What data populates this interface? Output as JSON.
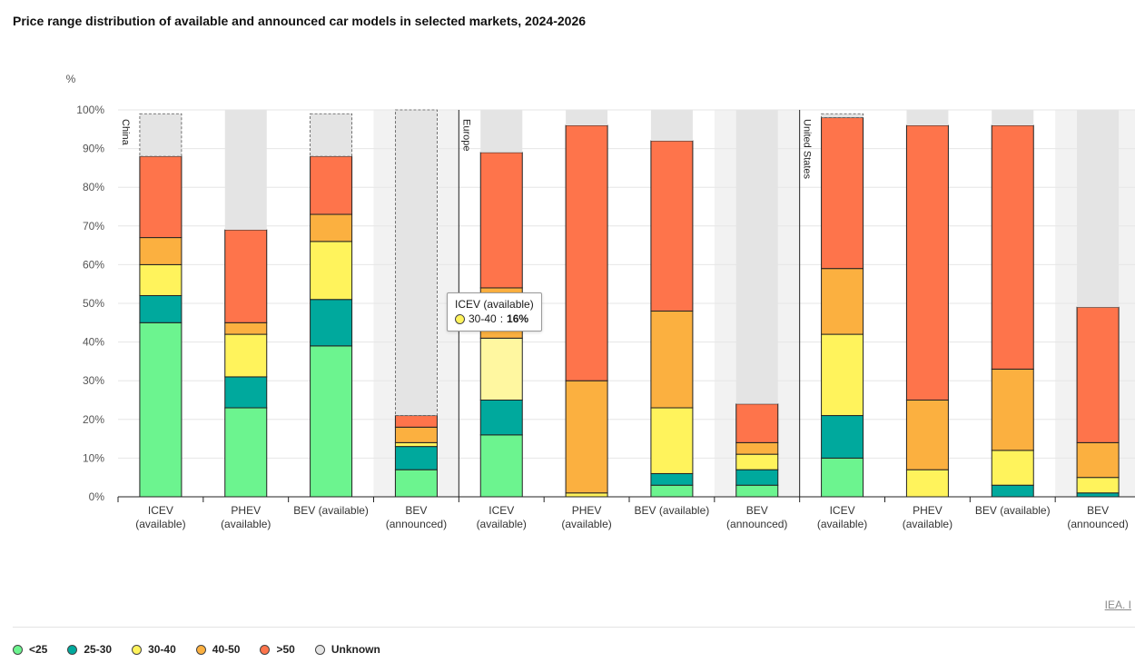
{
  "title": "Price range distribution of available and announced car models in selected markets, 2024-2026",
  "source_link": "IEA. I",
  "tooltip": {
    "category": "ICEV (available)",
    "series": "30-40",
    "value": "16%",
    "color": "#fff35c"
  },
  "chart_data": {
    "type": "bar",
    "stacked": true,
    "title": "Price range distribution of available and announced car models in selected markets, 2024-2026",
    "ylabel": "%",
    "ylim": [
      0,
      100
    ],
    "yticks": [
      "0%",
      "10%",
      "20%",
      "30%",
      "40%",
      "50%",
      "60%",
      "70%",
      "80%",
      "90%",
      "100%"
    ],
    "grid": true,
    "series": [
      {
        "name": "<25",
        "color": "#6cf48f"
      },
      {
        "name": "25-30",
        "color": "#00a99d"
      },
      {
        "name": "30-40",
        "color": "#fff35c"
      },
      {
        "name": "40-50",
        "color": "#fbb040"
      },
      {
        "name": ">50",
        "color": "#fe744b"
      },
      {
        "name": "Unknown",
        "color": "#e4e4e4"
      }
    ],
    "groups": [
      {
        "name": "China",
        "bars": [
          {
            "label": [
              "ICEV",
              "(available)"
            ],
            "values": [
              45,
              7,
              8,
              7,
              21,
              11
            ],
            "announced": false,
            "dashed_unknown": true
          },
          {
            "label": [
              "PHEV",
              "(available)"
            ],
            "values": [
              23,
              8,
              11,
              3,
              24,
              31
            ],
            "announced": false,
            "dashed_unknown": false
          },
          {
            "label": [
              "BEV (available)"
            ],
            "values": [
              39,
              12,
              15,
              7,
              15,
              11
            ],
            "announced": false,
            "dashed_unknown": true
          },
          {
            "label": [
              "BEV",
              "(announced)"
            ],
            "values": [
              7,
              6,
              1,
              4,
              3,
              79
            ],
            "announced": true,
            "dashed_unknown": true
          }
        ]
      },
      {
        "name": "Europe",
        "bars": [
          {
            "label": [
              "ICEV",
              "(available)"
            ],
            "values": [
              16,
              9,
              16,
              13,
              35,
              11
            ],
            "announced": false,
            "dashed_unknown": false,
            "highlight": 2
          },
          {
            "label": [
              "PHEV",
              "(available)"
            ],
            "values": [
              0,
              0,
              1,
              29,
              66,
              4
            ],
            "announced": false,
            "dashed_unknown": false
          },
          {
            "label": [
              "BEV (available)"
            ],
            "values": [
              3,
              3,
              17,
              25,
              44,
              8
            ],
            "announced": false,
            "dashed_unknown": false
          },
          {
            "label": [
              "BEV",
              "(announced)"
            ],
            "values": [
              3,
              4,
              4,
              3,
              10,
              76
            ],
            "announced": true,
            "dashed_unknown": false
          }
        ]
      },
      {
        "name": "United States",
        "bars": [
          {
            "label": [
              "ICEV",
              "(available)"
            ],
            "values": [
              10,
              11,
              21,
              17,
              39,
              1
            ],
            "announced": false,
            "dashed_unknown": true
          },
          {
            "label": [
              "PHEV",
              "(available)"
            ],
            "values": [
              0,
              0,
              7,
              18,
              71,
              4
            ],
            "announced": false,
            "dashed_unknown": false
          },
          {
            "label": [
              "BEV (available)"
            ],
            "values": [
              0,
              3,
              9,
              21,
              63,
              4
            ],
            "announced": false,
            "dashed_unknown": false
          },
          {
            "label": [
              "BEV",
              "(announced)"
            ],
            "values": [
              0,
              1,
              4,
              9,
              35,
              51
            ],
            "announced": true,
            "dashed_unknown": false
          }
        ]
      }
    ]
  }
}
